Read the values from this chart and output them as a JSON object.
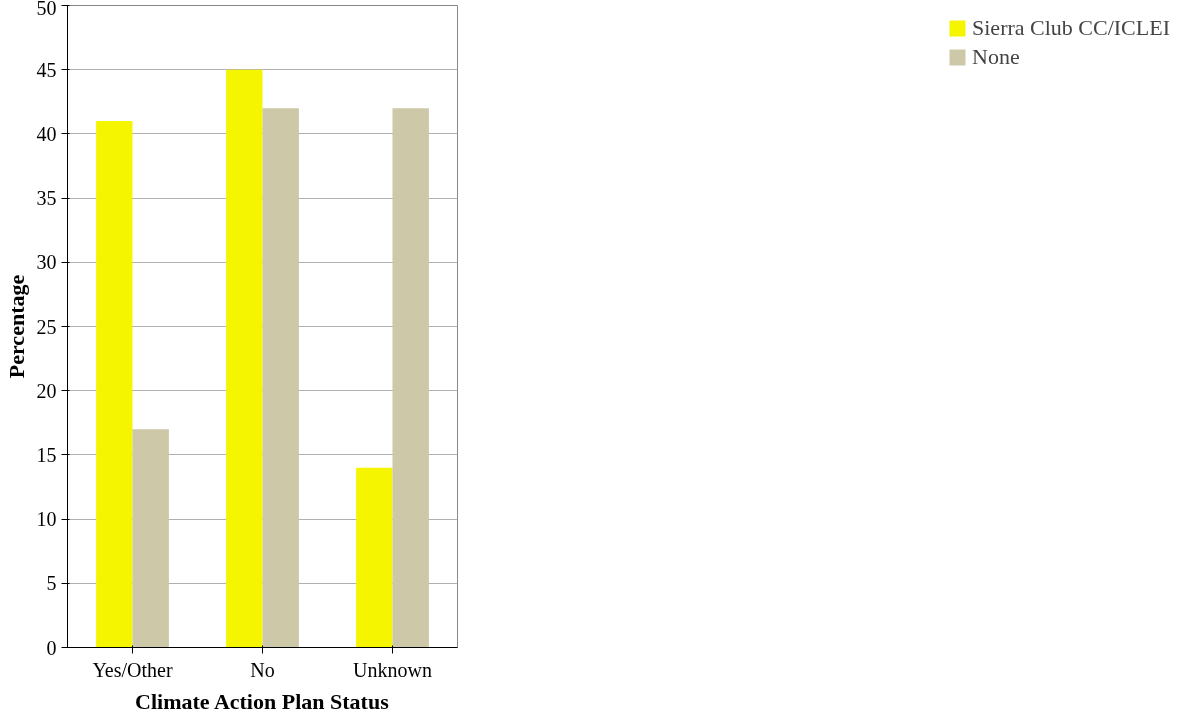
{
  "chart_data": {
    "type": "bar",
    "xlabel": "Climate Action Plan Status",
    "ylabel": "Percentage",
    "categories": [
      "Yes/Other",
      "No",
      "Unknown"
    ],
    "series": [
      {
        "name": "Sierra Club CC/ICLEI",
        "color": "#f5f500",
        "values": [
          41,
          45,
          14
        ]
      },
      {
        "name": "None",
        "color": "#ccc8a8",
        "values": [
          17,
          42,
          42
        ]
      }
    ],
    "ylim": [
      0,
      50
    ],
    "yticks": [
      0,
      5,
      10,
      15,
      20,
      25,
      30,
      35,
      40,
      45,
      50
    ],
    "grid": "y",
    "legend": "right"
  }
}
